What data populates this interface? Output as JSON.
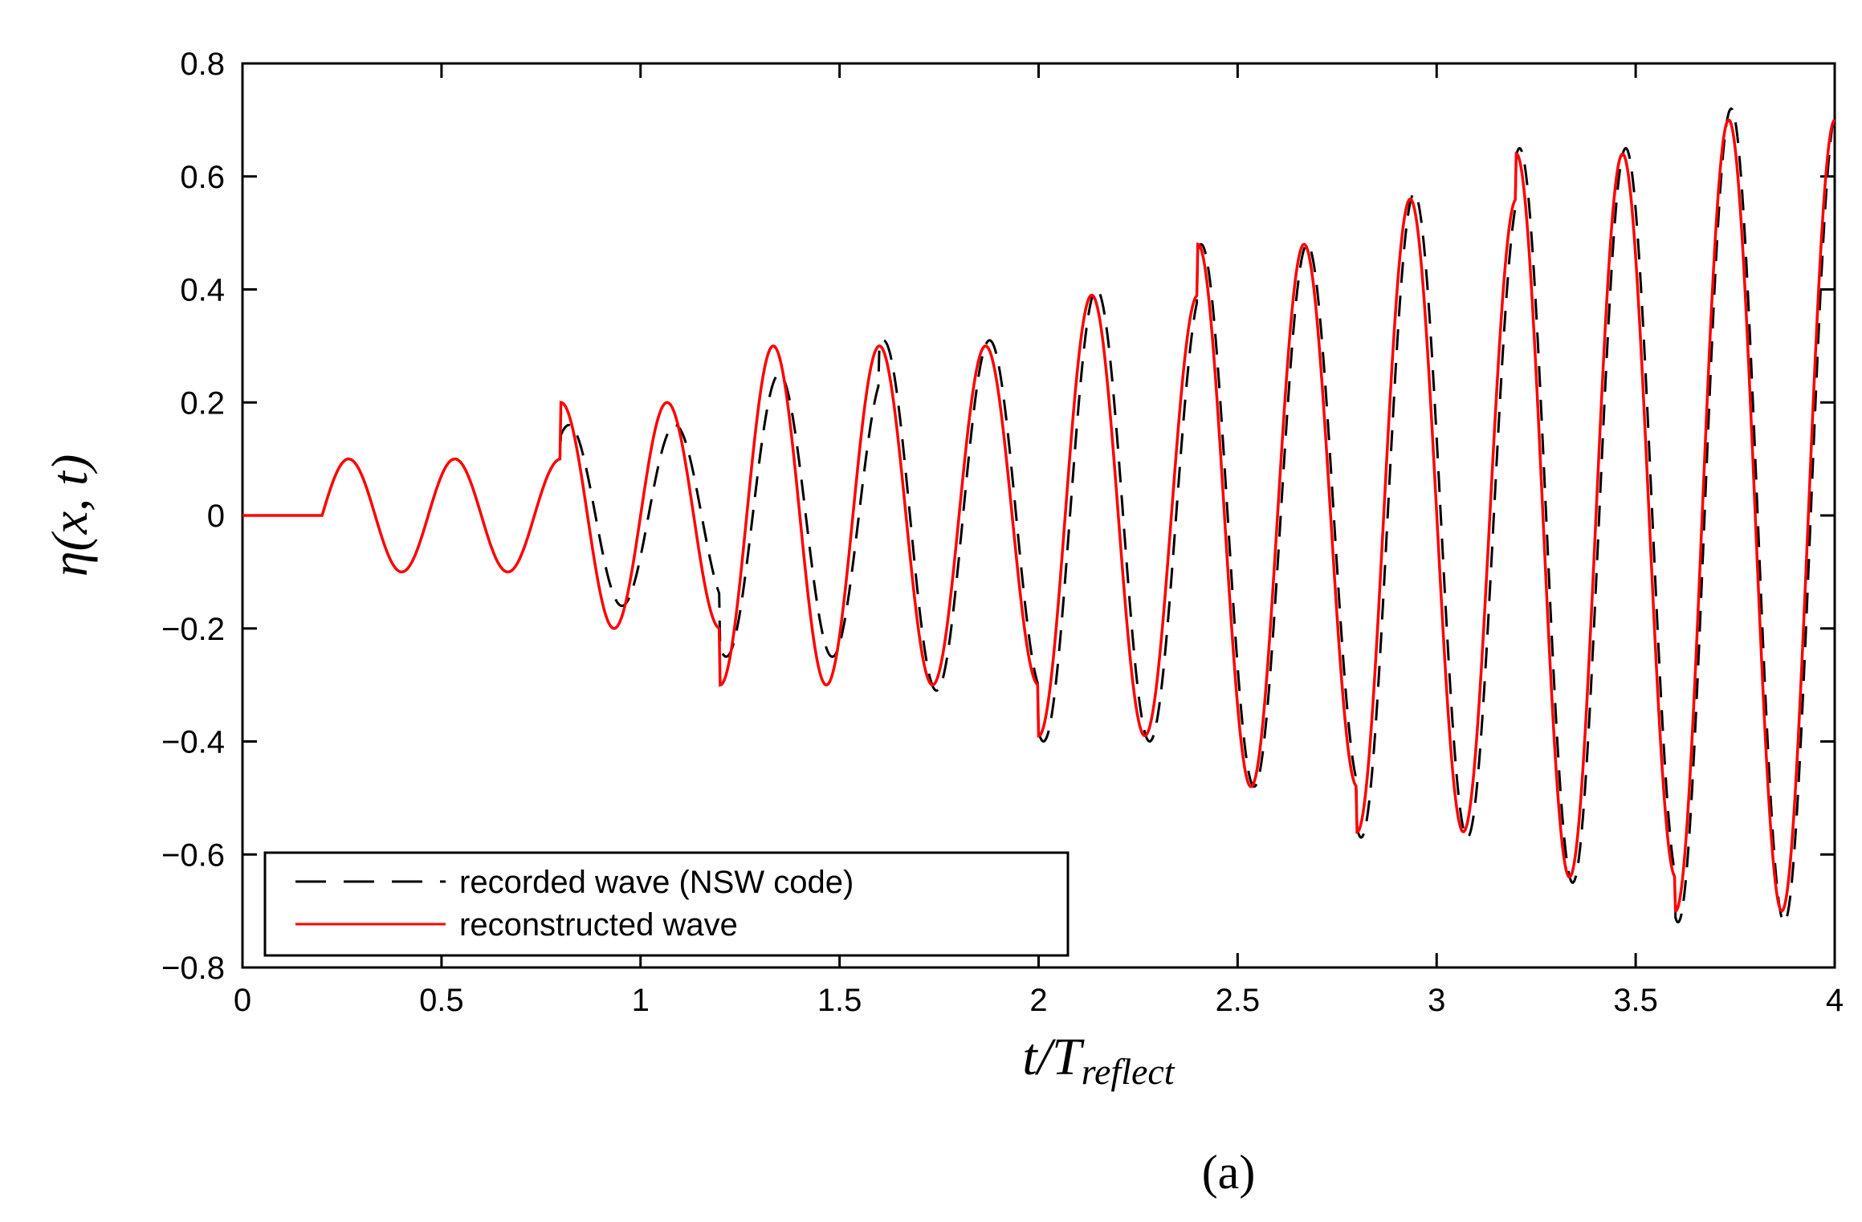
{
  "chart_data": {
    "type": "line",
    "title": "",
    "xlabel": "t/T",
    "xlabel_subscript": "reflect",
    "ylabel": "η(x, t)",
    "xlim": [
      0,
      4
    ],
    "ylim": [
      -0.8,
      0.8
    ],
    "xticks": [
      0,
      0.5,
      1,
      1.5,
      2,
      2.5,
      3,
      3.5,
      4
    ],
    "xtick_labels": [
      "0",
      "0.5",
      "1",
      "1.5",
      "2",
      "2.5",
      "3",
      "3.5",
      "4"
    ],
    "yticks": [
      -0.8,
      -0.6,
      -0.4,
      -0.2,
      0,
      0.2,
      0.4,
      0.6,
      0.8
    ],
    "ytick_labels": [
      "−0.8",
      "−0.6",
      "−0.4",
      "−0.2",
      "0",
      "0.2",
      "0.4",
      "0.6",
      "0.8"
    ],
    "grid": false,
    "legend_position": "bottom-left",
    "wave_start": 0.2,
    "wave_period": 0.2667,
    "series": [
      {
        "name": "recorded wave (NSW code)",
        "style": "dashed",
        "color": "#000000",
        "segment_breaks": [
          0.2,
          0.8,
          1.2,
          1.6,
          2.0,
          2.4,
          2.8,
          3.2,
          3.6,
          4.0
        ],
        "segment_amplitudes": [
          0.1,
          0.16,
          0.25,
          0.31,
          0.4,
          0.48,
          0.57,
          0.65,
          0.72
        ],
        "segment_phase_shifts": [
          0.0,
          0.02,
          0.015,
          0.01,
          0.012,
          0.008,
          0.01,
          0.008,
          0.006
        ]
      },
      {
        "name": "reconstructed wave",
        "style": "solid",
        "color": "#ff0000",
        "segment_breaks": [
          0.2,
          0.8,
          1.2,
          1.6,
          2.0,
          2.4,
          2.8,
          3.2,
          3.6,
          4.0
        ],
        "segment_amplitudes": [
          0.1,
          0.2,
          0.3,
          0.3,
          0.39,
          0.48,
          0.56,
          0.64,
          0.7
        ],
        "segment_phase_shifts": [
          0,
          0,
          0,
          0,
          0,
          0,
          0,
          0,
          0
        ]
      }
    ]
  },
  "panel_label": "(a)",
  "colors": {
    "axis": "#000000",
    "recorded": "#000000",
    "reconstructed": "#ff0000",
    "background": "#ffffff"
  }
}
